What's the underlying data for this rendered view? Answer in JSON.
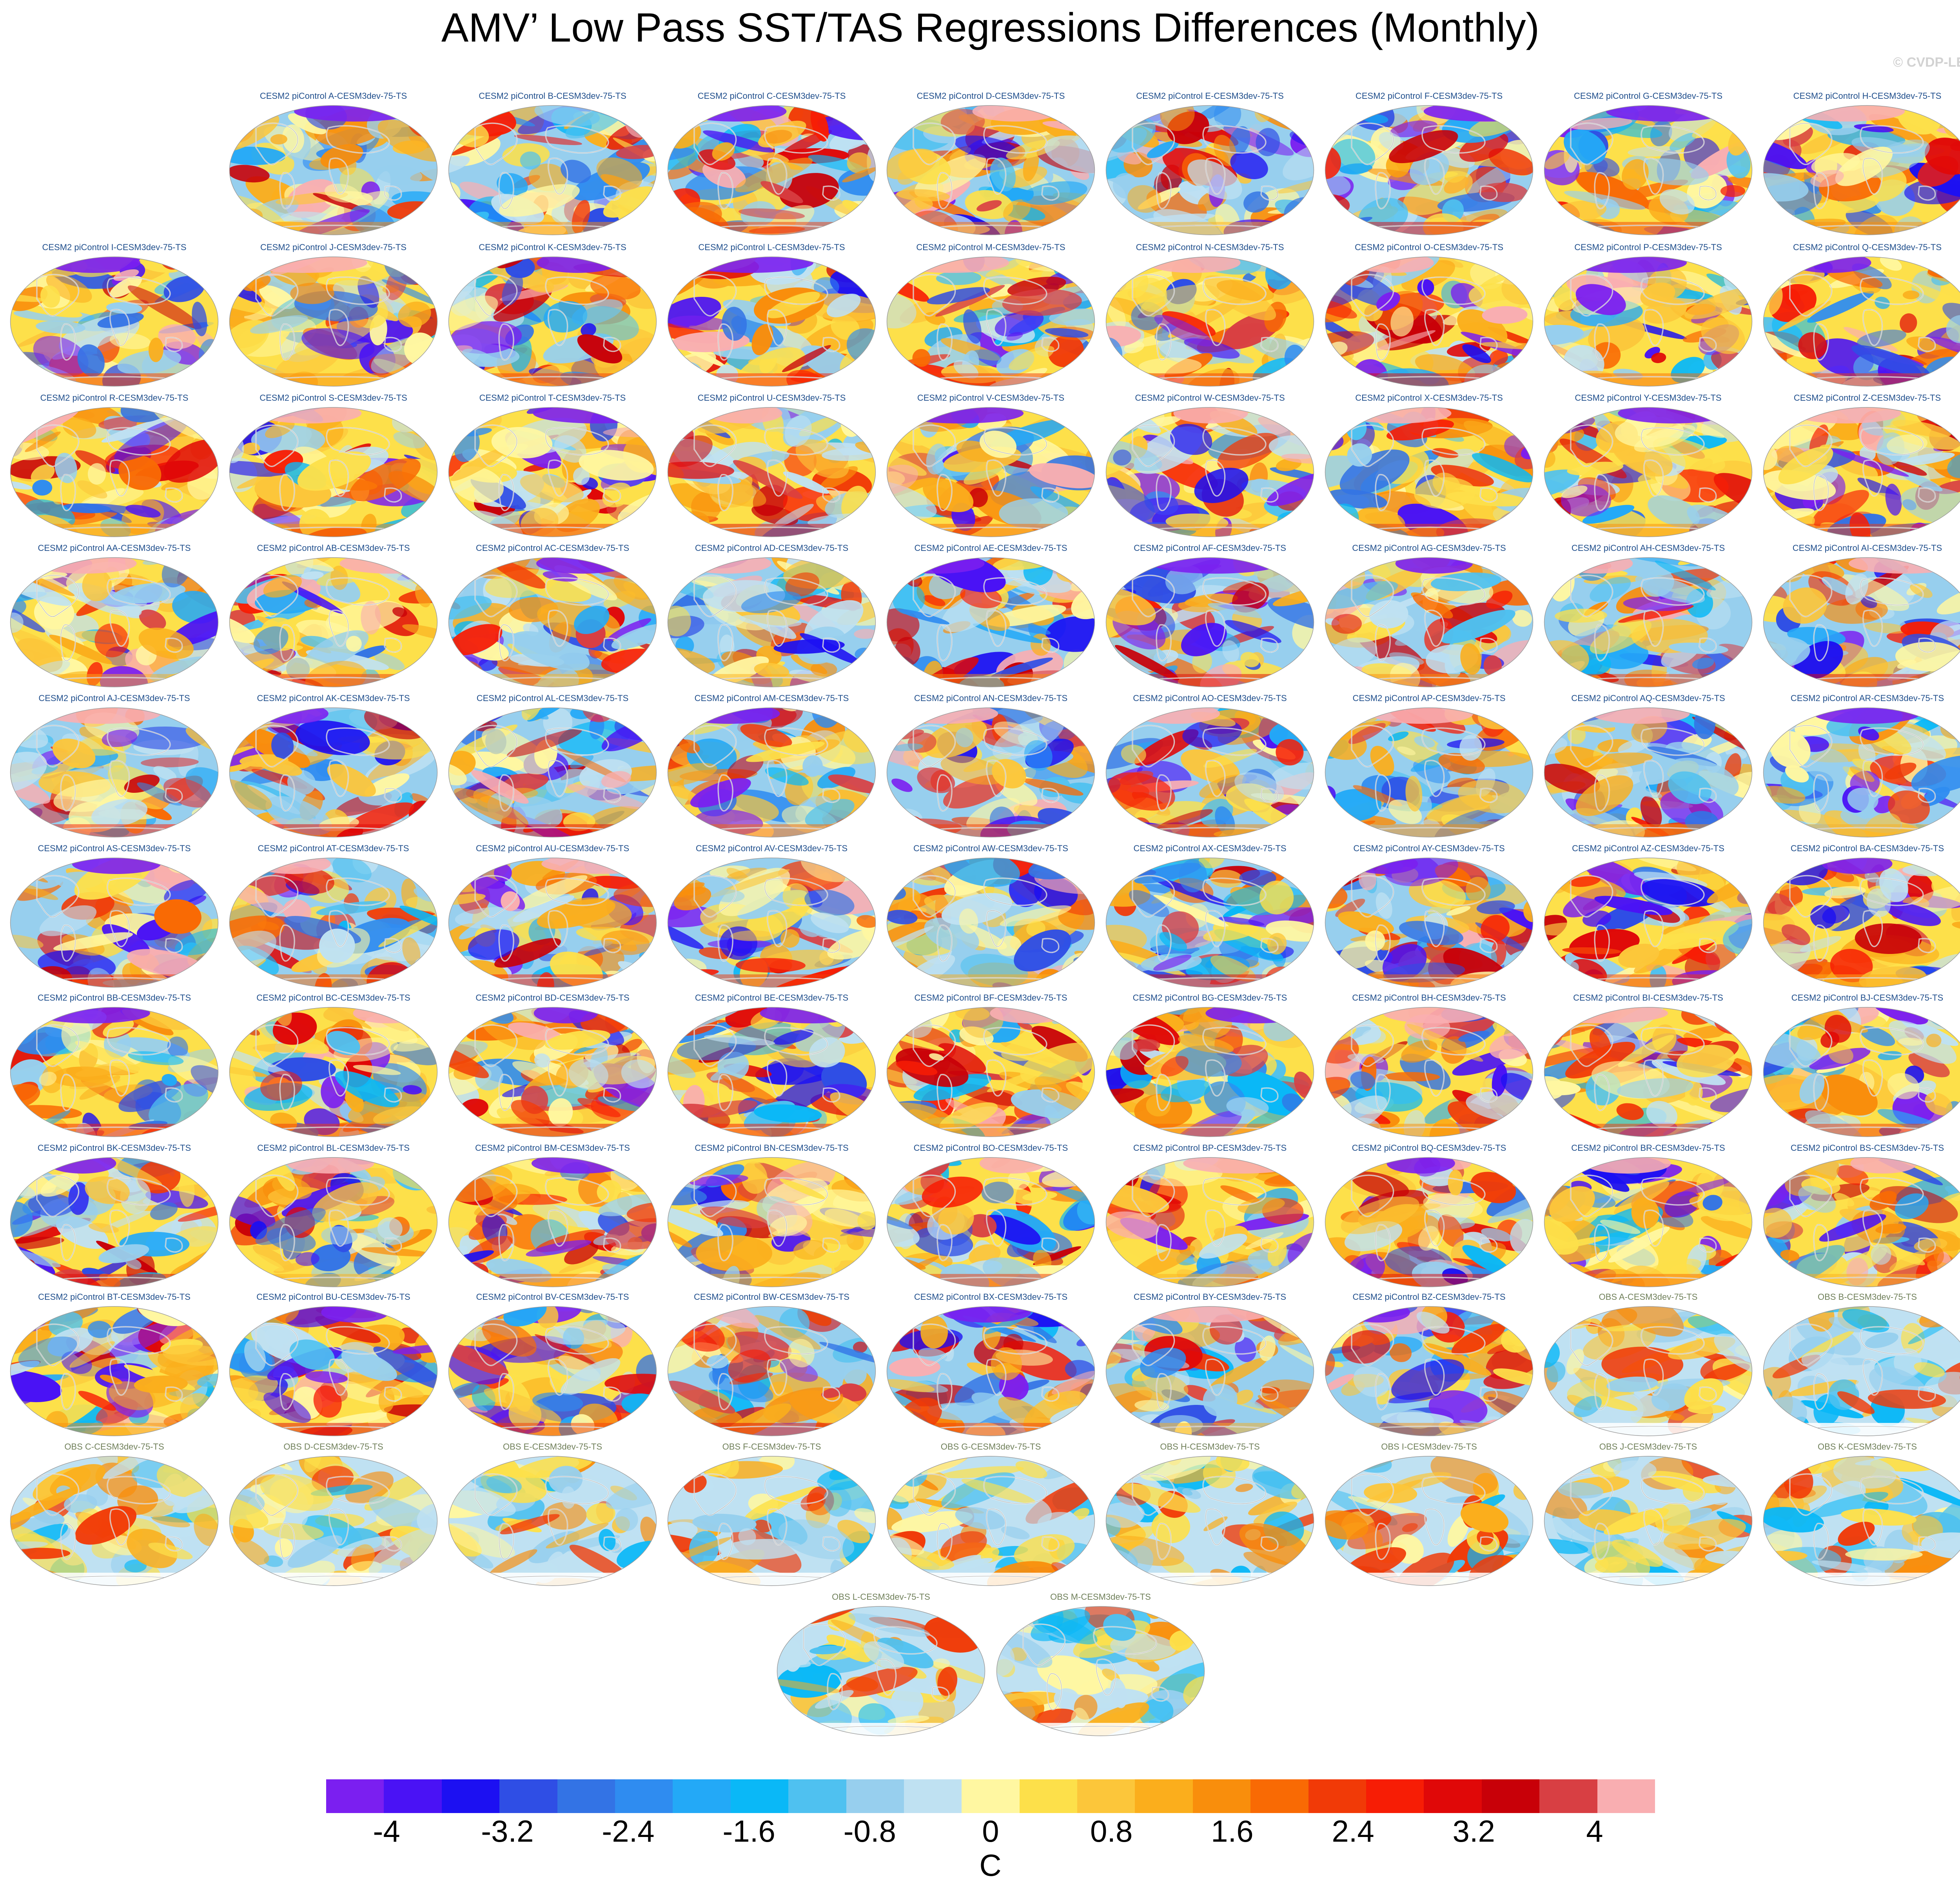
{
  "title": "AMV’ Low Pass SST/TAS Regressions Differences (Monthly)",
  "watermark": "© CVDP-LE",
  "panels": [
    {
      "label": "CESM2 piControl A-CESM3dev-75-TS",
      "group": "cesm"
    },
    {
      "label": "CESM2 piControl B-CESM3dev-75-TS",
      "group": "cesm"
    },
    {
      "label": "CESM2 piControl C-CESM3dev-75-TS",
      "group": "cesm"
    },
    {
      "label": "CESM2 piControl D-CESM3dev-75-TS",
      "group": "cesm"
    },
    {
      "label": "CESM2 piControl E-CESM3dev-75-TS",
      "group": "cesm"
    },
    {
      "label": "CESM2 piControl F-CESM3dev-75-TS",
      "group": "cesm"
    },
    {
      "label": "CESM2 piControl G-CESM3dev-75-TS",
      "group": "cesm"
    },
    {
      "label": "CESM2 piControl H-CESM3dev-75-TS",
      "group": "cesm"
    },
    {
      "label": "CESM2 piControl I-CESM3dev-75-TS",
      "group": "cesm"
    },
    {
      "label": "CESM2 piControl J-CESM3dev-75-TS",
      "group": "cesm"
    },
    {
      "label": "CESM2 piControl K-CESM3dev-75-TS",
      "group": "cesm"
    },
    {
      "label": "CESM2 piControl L-CESM3dev-75-TS",
      "group": "cesm"
    },
    {
      "label": "CESM2 piControl M-CESM3dev-75-TS",
      "group": "cesm"
    },
    {
      "label": "CESM2 piControl N-CESM3dev-75-TS",
      "group": "cesm"
    },
    {
      "label": "CESM2 piControl O-CESM3dev-75-TS",
      "group": "cesm"
    },
    {
      "label": "CESM2 piControl P-CESM3dev-75-TS",
      "group": "cesm"
    },
    {
      "label": "CESM2 piControl Q-CESM3dev-75-TS",
      "group": "cesm"
    },
    {
      "label": "CESM2 piControl R-CESM3dev-75-TS",
      "group": "cesm"
    },
    {
      "label": "CESM2 piControl S-CESM3dev-75-TS",
      "group": "cesm"
    },
    {
      "label": "CESM2 piControl T-CESM3dev-75-TS",
      "group": "cesm"
    },
    {
      "label": "CESM2 piControl U-CESM3dev-75-TS",
      "group": "cesm"
    },
    {
      "label": "CESM2 piControl V-CESM3dev-75-TS",
      "group": "cesm"
    },
    {
      "label": "CESM2 piControl W-CESM3dev-75-TS",
      "group": "cesm"
    },
    {
      "label": "CESM2 piControl X-CESM3dev-75-TS",
      "group": "cesm"
    },
    {
      "label": "CESM2 piControl Y-CESM3dev-75-TS",
      "group": "cesm"
    },
    {
      "label": "CESM2 piControl Z-CESM3dev-75-TS",
      "group": "cesm"
    },
    {
      "label": "CESM2 piControl AA-CESM3dev-75-TS",
      "group": "cesm"
    },
    {
      "label": "CESM2 piControl AB-CESM3dev-75-TS",
      "group": "cesm"
    },
    {
      "label": "CESM2 piControl AC-CESM3dev-75-TS",
      "group": "cesm"
    },
    {
      "label": "CESM2 piControl AD-CESM3dev-75-TS",
      "group": "cesm"
    },
    {
      "label": "CESM2 piControl AE-CESM3dev-75-TS",
      "group": "cesm"
    },
    {
      "label": "CESM2 piControl AF-CESM3dev-75-TS",
      "group": "cesm"
    },
    {
      "label": "CESM2 piControl AG-CESM3dev-75-TS",
      "group": "cesm"
    },
    {
      "label": "CESM2 piControl AH-CESM3dev-75-TS",
      "group": "cesm"
    },
    {
      "label": "CESM2 piControl AI-CESM3dev-75-TS",
      "group": "cesm"
    },
    {
      "label": "CESM2 piControl AJ-CESM3dev-75-TS",
      "group": "cesm"
    },
    {
      "label": "CESM2 piControl AK-CESM3dev-75-TS",
      "group": "cesm"
    },
    {
      "label": "CESM2 piControl AL-CESM3dev-75-TS",
      "group": "cesm"
    },
    {
      "label": "CESM2 piControl AM-CESM3dev-75-TS",
      "group": "cesm"
    },
    {
      "label": "CESM2 piControl AN-CESM3dev-75-TS",
      "group": "cesm"
    },
    {
      "label": "CESM2 piControl AO-CESM3dev-75-TS",
      "group": "cesm"
    },
    {
      "label": "CESM2 piControl AP-CESM3dev-75-TS",
      "group": "cesm"
    },
    {
      "label": "CESM2 piControl AQ-CESM3dev-75-TS",
      "group": "cesm"
    },
    {
      "label": "CESM2 piControl AR-CESM3dev-75-TS",
      "group": "cesm"
    },
    {
      "label": "CESM2 piControl AS-CESM3dev-75-TS",
      "group": "cesm"
    },
    {
      "label": "CESM2 piControl AT-CESM3dev-75-TS",
      "group": "cesm"
    },
    {
      "label": "CESM2 piControl AU-CESM3dev-75-TS",
      "group": "cesm"
    },
    {
      "label": "CESM2 piControl AV-CESM3dev-75-TS",
      "group": "cesm"
    },
    {
      "label": "CESM2 piControl AW-CESM3dev-75-TS",
      "group": "cesm"
    },
    {
      "label": "CESM2 piControl AX-CESM3dev-75-TS",
      "group": "cesm"
    },
    {
      "label": "CESM2 piControl AY-CESM3dev-75-TS",
      "group": "cesm"
    },
    {
      "label": "CESM2 piControl AZ-CESM3dev-75-TS",
      "group": "cesm"
    },
    {
      "label": "CESM2 piControl BA-CESM3dev-75-TS",
      "group": "cesm"
    },
    {
      "label": "CESM2 piControl BB-CESM3dev-75-TS",
      "group": "cesm"
    },
    {
      "label": "CESM2 piControl BC-CESM3dev-75-TS",
      "group": "cesm"
    },
    {
      "label": "CESM2 piControl BD-CESM3dev-75-TS",
      "group": "cesm"
    },
    {
      "label": "CESM2 piControl BE-CESM3dev-75-TS",
      "group": "cesm"
    },
    {
      "label": "CESM2 piControl BF-CESM3dev-75-TS",
      "group": "cesm"
    },
    {
      "label": "CESM2 piControl BG-CESM3dev-75-TS",
      "group": "cesm"
    },
    {
      "label": "CESM2 piControl BH-CESM3dev-75-TS",
      "group": "cesm"
    },
    {
      "label": "CESM2 piControl BI-CESM3dev-75-TS",
      "group": "cesm"
    },
    {
      "label": "CESM2 piControl BJ-CESM3dev-75-TS",
      "group": "cesm"
    },
    {
      "label": "CESM2 piControl BK-CESM3dev-75-TS",
      "group": "cesm"
    },
    {
      "label": "CESM2 piControl BL-CESM3dev-75-TS",
      "group": "cesm"
    },
    {
      "label": "CESM2 piControl BM-CESM3dev-75-TS",
      "group": "cesm"
    },
    {
      "label": "CESM2 piControl BN-CESM3dev-75-TS",
      "group": "cesm"
    },
    {
      "label": "CESM2 piControl BO-CESM3dev-75-TS",
      "group": "cesm"
    },
    {
      "label": "CESM2 piControl BP-CESM3dev-75-TS",
      "group": "cesm"
    },
    {
      "label": "CESM2 piControl BQ-CESM3dev-75-TS",
      "group": "cesm"
    },
    {
      "label": "CESM2 piControl BR-CESM3dev-75-TS",
      "group": "cesm"
    },
    {
      "label": "CESM2 piControl BS-CESM3dev-75-TS",
      "group": "cesm"
    },
    {
      "label": "CESM2 piControl BT-CESM3dev-75-TS",
      "group": "cesm"
    },
    {
      "label": "CESM2 piControl BU-CESM3dev-75-TS",
      "group": "cesm"
    },
    {
      "label": "CESM2 piControl BV-CESM3dev-75-TS",
      "group": "cesm"
    },
    {
      "label": "CESM2 piControl BW-CESM3dev-75-TS",
      "group": "cesm"
    },
    {
      "label": "CESM2 piControl BX-CESM3dev-75-TS",
      "group": "cesm"
    },
    {
      "label": "CESM2 piControl BY-CESM3dev-75-TS",
      "group": "cesm"
    },
    {
      "label": "CESM2 piControl BZ-CESM3dev-75-TS",
      "group": "cesm"
    },
    {
      "label": "OBS A-CESM3dev-75-TS",
      "group": "obs"
    },
    {
      "label": "OBS B-CESM3dev-75-TS",
      "group": "obs"
    },
    {
      "label": "OBS C-CESM3dev-75-TS",
      "group": "obs"
    },
    {
      "label": "OBS D-CESM3dev-75-TS",
      "group": "obs"
    },
    {
      "label": "OBS E-CESM3dev-75-TS",
      "group": "obs"
    },
    {
      "label": "OBS F-CESM3dev-75-TS",
      "group": "obs"
    },
    {
      "label": "OBS G-CESM3dev-75-TS",
      "group": "obs"
    },
    {
      "label": "OBS H-CESM3dev-75-TS",
      "group": "obs"
    },
    {
      "label": "OBS I-CESM3dev-75-TS",
      "group": "obs"
    },
    {
      "label": "OBS J-CESM3dev-75-TS",
      "group": "obs"
    },
    {
      "label": "OBS K-CESM3dev-75-TS",
      "group": "obs"
    },
    {
      "label": "OBS L-CESM3dev-75-TS",
      "group": "obs"
    },
    {
      "label": "OBS M-CESM3dev-75-TS",
      "group": "obs"
    }
  ],
  "colorbar": {
    "colors": [
      "#7b1ff0",
      "#4a12f5",
      "#1c10f2",
      "#2f4ee5",
      "#3373e5",
      "#2f8cf0",
      "#23a9f7",
      "#0ab8f7",
      "#4fc1f0",
      "#97cfee",
      "#bfe1f2",
      "#fff7a1",
      "#fde04a",
      "#fcc63a",
      "#fbae1c",
      "#f98e0c",
      "#f96a04",
      "#f13a07",
      "#f71d05",
      "#e00808",
      "#c80008",
      "#d83f43",
      "#f9aeb1"
    ],
    "tick_values": [
      -4,
      -3.2,
      -2.4,
      -1.6,
      -0.8,
      0,
      0.8,
      1.6,
      2.4,
      3.2,
      4
    ],
    "tick_labels": [
      "-4",
      "-3.2",
      "-2.4",
      "-1.6",
      "-0.8",
      "0",
      "0.8",
      "1.6",
      "2.4",
      "3.2",
      "4"
    ],
    "range": [
      -4.4,
      4.4
    ],
    "units": "C"
  }
}
